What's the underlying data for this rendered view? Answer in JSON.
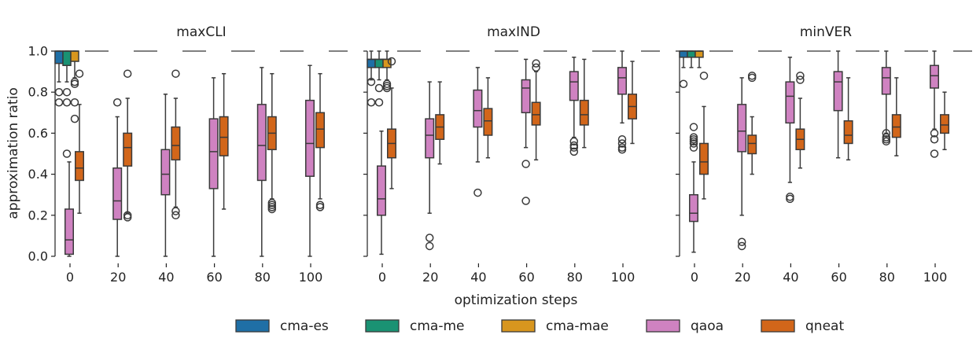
{
  "figure": {
    "xlabel": "optimization steps",
    "ylabel": "approximation ratio"
  },
  "legend": [
    {
      "name": "cma-es",
      "color": "#1f6fa6"
    },
    {
      "name": "cma-me",
      "color": "#1a9273"
    },
    {
      "name": "cma-mae",
      "color": "#d8961e"
    },
    {
      "name": "qaoa",
      "color": "#cf82c1"
    },
    {
      "name": "qneat",
      "color": "#d2661a"
    }
  ],
  "chart_data": [
    {
      "type": "box",
      "title": "maxCLI",
      "xticks": [
        "0",
        "20",
        "40",
        "60",
        "80",
        "100"
      ],
      "yticks": [
        "0.0",
        "0.2",
        "0.4",
        "0.6",
        "0.8",
        "1.0"
      ],
      "ylim": [
        0,
        1
      ],
      "reference_line": 1.0,
      "cma_boxes": [
        {
          "series": "cma-es",
          "q1": 0.94,
          "median": 1.0,
          "q3": 1.0,
          "whislo": 0.85,
          "whishi": 1.0,
          "fliers": [
            0.8,
            0.75
          ]
        },
        {
          "series": "cma-me",
          "q1": 0.93,
          "median": 1.0,
          "q3": 1.0,
          "whislo": 0.85,
          "whishi": 1.0,
          "fliers": [
            0.8,
            0.75,
            0.5
          ]
        },
        {
          "series": "cma-mae",
          "q1": 0.95,
          "median": 1.0,
          "q3": 1.0,
          "whislo": 0.87,
          "whishi": 1.0,
          "fliers": [
            0.85,
            0.84,
            0.75,
            0.67
          ]
        }
      ],
      "steps": [
        {
          "step": 0,
          "qaoa": {
            "q1": 0.01,
            "median": 0.08,
            "q3": 0.23,
            "whislo": 0.0,
            "whishi": 0.46,
            "fliers": []
          },
          "qneat": {
            "q1": 0.37,
            "median": 0.43,
            "q3": 0.51,
            "whislo": 0.21,
            "whishi": 0.74,
            "fliers": [
              0.89
            ]
          }
        },
        {
          "step": 20,
          "qaoa": {
            "q1": 0.18,
            "median": 0.27,
            "q3": 0.43,
            "whislo": 0.0,
            "whishi": 0.68,
            "fliers": [
              0.75
            ]
          },
          "qneat": {
            "q1": 0.44,
            "median": 0.53,
            "q3": 0.6,
            "whislo": 0.21,
            "whishi": 0.77,
            "fliers": [
              0.2,
              0.19,
              0.89
            ]
          }
        },
        {
          "step": 40,
          "qaoa": {
            "q1": 0.3,
            "median": 0.4,
            "q3": 0.52,
            "whislo": 0.0,
            "whishi": 0.79,
            "fliers": []
          },
          "qneat": {
            "q1": 0.47,
            "median": 0.54,
            "q3": 0.63,
            "whislo": 0.24,
            "whishi": 0.77,
            "fliers": [
              0.22,
              0.2,
              0.89
            ]
          }
        },
        {
          "step": 60,
          "qaoa": {
            "q1": 0.33,
            "median": 0.51,
            "q3": 0.67,
            "whislo": 0.0,
            "whishi": 0.87,
            "fliers": []
          },
          "qneat": {
            "q1": 0.49,
            "median": 0.58,
            "q3": 0.68,
            "whislo": 0.23,
            "whishi": 0.89,
            "fliers": []
          }
        },
        {
          "step": 80,
          "qaoa": {
            "q1": 0.37,
            "median": 0.54,
            "q3": 0.74,
            "whislo": 0.0,
            "whishi": 0.92,
            "fliers": []
          },
          "qneat": {
            "q1": 0.52,
            "median": 0.6,
            "q3": 0.68,
            "whislo": 0.28,
            "whishi": 0.89,
            "fliers": [
              0.26,
              0.25,
              0.24,
              0.23
            ]
          }
        },
        {
          "step": 100,
          "qaoa": {
            "q1": 0.39,
            "median": 0.55,
            "q3": 0.76,
            "whislo": 0.0,
            "whishi": 0.93,
            "fliers": []
          },
          "qneat": {
            "q1": 0.53,
            "median": 0.62,
            "q3": 0.7,
            "whislo": 0.28,
            "whishi": 0.89,
            "fliers": [
              0.25,
              0.24
            ]
          }
        }
      ]
    },
    {
      "type": "box",
      "title": "maxIND",
      "xticks": [
        "0",
        "20",
        "40",
        "60",
        "80",
        "100"
      ],
      "yticks": [
        "0.0",
        "0.2",
        "0.4",
        "0.6",
        "0.8",
        "1.0"
      ],
      "ylim": [
        0,
        1
      ],
      "reference_line": 1.0,
      "cma_boxes": [
        {
          "series": "cma-es",
          "q1": 0.92,
          "median": 0.96,
          "q3": 0.96,
          "whislo": 0.86,
          "whishi": 1.0,
          "fliers": [
            0.85,
            0.75
          ]
        },
        {
          "series": "cma-me",
          "q1": 0.92,
          "median": 0.96,
          "q3": 0.96,
          "whislo": 0.86,
          "whishi": 1.0,
          "fliers": [
            0.82,
            0.75
          ]
        },
        {
          "series": "cma-mae",
          "q1": 0.92,
          "median": 0.96,
          "q3": 0.96,
          "whislo": 0.86,
          "whishi": 1.0,
          "fliers": [
            0.84,
            0.83,
            0.82
          ]
        }
      ],
      "steps": [
        {
          "step": 0,
          "qaoa": {
            "q1": 0.2,
            "median": 0.28,
            "q3": 0.44,
            "whislo": 0.01,
            "whishi": 0.61,
            "fliers": []
          },
          "qneat": {
            "q1": 0.48,
            "median": 0.55,
            "q3": 0.62,
            "whislo": 0.33,
            "whishi": 0.82,
            "fliers": [
              0.95
            ]
          }
        },
        {
          "step": 20,
          "qaoa": {
            "q1": 0.48,
            "median": 0.59,
            "q3": 0.67,
            "whislo": 0.21,
            "whishi": 0.85,
            "fliers": [
              0.09,
              0.05
            ]
          },
          "qneat": {
            "q1": 0.57,
            "median": 0.63,
            "q3": 0.69,
            "whislo": 0.45,
            "whishi": 0.85,
            "fliers": []
          }
        },
        {
          "step": 40,
          "qaoa": {
            "q1": 0.63,
            "median": 0.71,
            "q3": 0.81,
            "whislo": 0.46,
            "whishi": 0.92,
            "fliers": [
              0.31
            ]
          },
          "qneat": {
            "q1": 0.59,
            "median": 0.66,
            "q3": 0.72,
            "whislo": 0.48,
            "whishi": 0.87,
            "fliers": []
          }
        },
        {
          "step": 60,
          "qaoa": {
            "q1": 0.7,
            "median": 0.82,
            "q3": 0.86,
            "whislo": 0.53,
            "whishi": 0.96,
            "fliers": [
              0.45,
              0.27
            ]
          },
          "qneat": {
            "q1": 0.64,
            "median": 0.69,
            "q3": 0.75,
            "whislo": 0.47,
            "whishi": 0.9,
            "fliers": [
              0.94,
              0.92
            ]
          }
        },
        {
          "step": 80,
          "qaoa": {
            "q1": 0.76,
            "median": 0.85,
            "q3": 0.9,
            "whislo": 0.58,
            "whishi": 0.97,
            "fliers": [
              0.56,
              0.54,
              0.53,
              0.51
            ]
          },
          "qneat": {
            "q1": 0.64,
            "median": 0.69,
            "q3": 0.76,
            "whislo": 0.53,
            "whishi": 0.96,
            "fliers": []
          }
        },
        {
          "step": 100,
          "qaoa": {
            "q1": 0.79,
            "median": 0.87,
            "q3": 0.92,
            "whislo": 0.65,
            "whishi": 1.0,
            "fliers": [
              0.57,
              0.55,
              0.53,
              0.52
            ]
          },
          "qneat": {
            "q1": 0.67,
            "median": 0.73,
            "q3": 0.79,
            "whislo": 0.55,
            "whishi": 0.95,
            "fliers": []
          }
        }
      ]
    },
    {
      "type": "box",
      "title": "minVER",
      "xticks": [
        "0",
        "20",
        "40",
        "60",
        "80",
        "100"
      ],
      "yticks": [
        "0.0",
        "0.2",
        "0.4",
        "0.6",
        "0.8",
        "1.0"
      ],
      "ylim": [
        0,
        1
      ],
      "reference_line": 1.0,
      "cma_boxes": [
        {
          "series": "cma-es",
          "q1": 0.97,
          "median": 1.0,
          "q3": 1.0,
          "whislo": 0.92,
          "whishi": 1.0,
          "fliers": [
            0.84
          ]
        },
        {
          "series": "cma-me",
          "q1": 0.97,
          "median": 1.0,
          "q3": 1.0,
          "whislo": 0.92,
          "whishi": 1.0,
          "fliers": []
        },
        {
          "series": "cma-mae",
          "q1": 0.97,
          "median": 1.0,
          "q3": 1.0,
          "whislo": 0.92,
          "whishi": 1.0,
          "fliers": []
        }
      ],
      "steps": [
        {
          "step": 0,
          "qaoa": {
            "q1": 0.17,
            "median": 0.21,
            "q3": 0.3,
            "whislo": 0.02,
            "whishi": 0.46,
            "fliers": [
              0.63,
              0.58,
              0.57,
              0.56,
              0.55,
              0.53
            ]
          },
          "qneat": {
            "q1": 0.4,
            "median": 0.46,
            "q3": 0.55,
            "whislo": 0.28,
            "whishi": 0.73,
            "fliers": [
              0.88
            ]
          }
        },
        {
          "step": 20,
          "qaoa": {
            "q1": 0.51,
            "median": 0.61,
            "q3": 0.74,
            "whislo": 0.2,
            "whishi": 0.87,
            "fliers": [
              0.07,
              0.05
            ]
          },
          "qneat": {
            "q1": 0.5,
            "median": 0.55,
            "q3": 0.59,
            "whislo": 0.4,
            "whishi": 0.68,
            "fliers": [
              0.88,
              0.87
            ]
          }
        },
        {
          "step": 40,
          "qaoa": {
            "q1": 0.65,
            "median": 0.78,
            "q3": 0.85,
            "whislo": 0.36,
            "whishi": 0.97,
            "fliers": [
              0.29,
              0.28
            ]
          },
          "qneat": {
            "q1": 0.52,
            "median": 0.57,
            "q3": 0.62,
            "whislo": 0.43,
            "whishi": 0.77,
            "fliers": [
              0.88,
              0.86
            ]
          }
        },
        {
          "step": 60,
          "qaoa": {
            "q1": 0.71,
            "median": 0.85,
            "q3": 0.9,
            "whislo": 0.48,
            "whishi": 1.0,
            "fliers": []
          },
          "qneat": {
            "q1": 0.55,
            "median": 0.59,
            "q3": 0.66,
            "whislo": 0.47,
            "whishi": 0.87,
            "fliers": []
          }
        },
        {
          "step": 80,
          "qaoa": {
            "q1": 0.79,
            "median": 0.87,
            "q3": 0.92,
            "whislo": 0.6,
            "whishi": 1.0,
            "fliers": [
              0.6,
              0.58,
              0.57,
              0.56
            ]
          },
          "qneat": {
            "q1": 0.58,
            "median": 0.63,
            "q3": 0.69,
            "whislo": 0.49,
            "whishi": 0.87,
            "fliers": []
          }
        },
        {
          "step": 100,
          "qaoa": {
            "q1": 0.82,
            "median": 0.88,
            "q3": 0.93,
            "whislo": 0.62,
            "whishi": 1.0,
            "fliers": [
              0.6,
              0.57,
              0.5
            ]
          },
          "qneat": {
            "q1": 0.6,
            "median": 0.64,
            "q3": 0.69,
            "whislo": 0.52,
            "whishi": 0.8,
            "fliers": []
          }
        }
      ]
    }
  ]
}
